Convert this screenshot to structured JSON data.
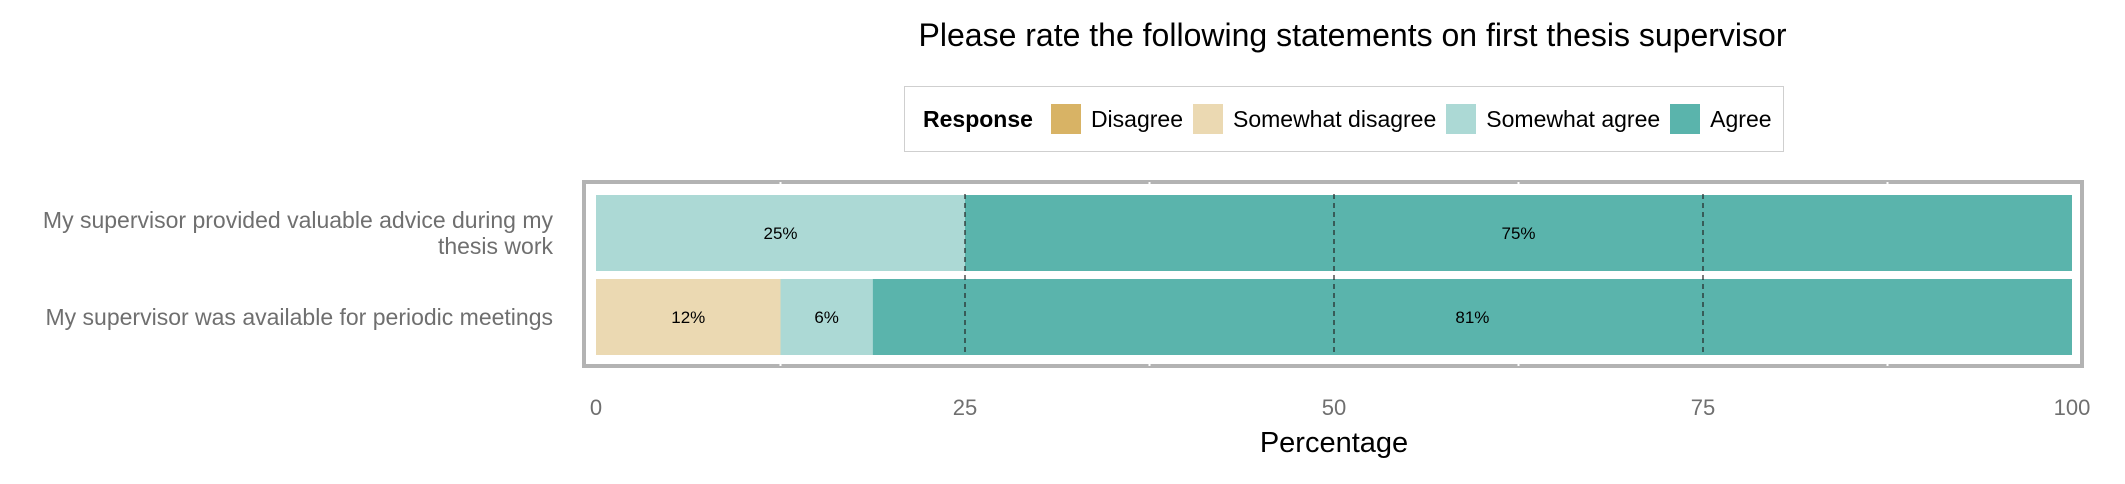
{
  "chart_data": {
    "type": "bar",
    "orientation": "horizontal",
    "stacked": true,
    "title": "Please rate the following statements on first thesis supervisor",
    "legend_title": "Response",
    "legend_position": "top",
    "categories": [
      "My supervisor provided valuable advice during my thesis work",
      "My supervisor was available for periodic meetings"
    ],
    "category_label_lines": [
      [
        "My supervisor provided valuable advice during my",
        "thesis work"
      ],
      [
        "My supervisor was available for periodic meetings"
      ]
    ],
    "series": [
      {
        "name": "Disagree",
        "color": "#d8b365",
        "values": [
          0,
          0
        ],
        "labels": [
          "",
          ""
        ]
      },
      {
        "name": "Somewhat disagree",
        "color": "#ebd9b2",
        "values": [
          0,
          12.5
        ],
        "labels": [
          "",
          "12%"
        ]
      },
      {
        "name": "Somewhat agree",
        "color": "#acd9d5",
        "values": [
          25,
          6.25
        ],
        "labels": [
          "25%",
          "6%"
        ]
      },
      {
        "name": "Agree",
        "color": "#5ab4ac",
        "values": [
          75,
          81.25
        ],
        "labels": [
          "75%",
          "81%"
        ]
      }
    ],
    "xlabel": "Percentage",
    "xlim": [
      0,
      100
    ],
    "xticks": [
      0,
      25,
      50,
      75,
      100
    ],
    "grid": true
  }
}
